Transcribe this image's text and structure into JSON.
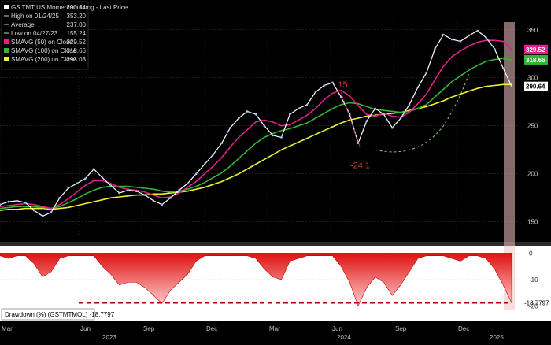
{
  "chart_data": [
    {
      "type": "line",
      "panel": "price",
      "legend": [
        {
          "label": "GS TMT US Momentum Long - Last Price",
          "value": "290.64",
          "color": "#ffffff"
        },
        {
          "label": "High on 01/24/25",
          "value": "353.20",
          "color": "#d0d0d0"
        },
        {
          "label": "Average",
          "value": "237.00",
          "color": "#d0d0d0"
        },
        {
          "label": "Low on 04/27/23",
          "value": "155.24",
          "color": "#d0d0d0"
        },
        {
          "label": "SMAVG (50)  on Close",
          "value": "329.52",
          "color": "#e0208c"
        },
        {
          "label": "SMAVG (100)  on Close",
          "value": "318.66",
          "color": "#36b336"
        },
        {
          "label": "SMAVG (200)  on Close",
          "value": "293.08",
          "color": "#f0f032"
        }
      ],
      "y_ticks": [
        "350",
        "300",
        "250",
        "200",
        "150"
      ],
      "ylim": [
        135,
        358
      ],
      "x_labels": [
        "Mar",
        "Jun",
        "Sep",
        "Dec",
        "Mar",
        "Jun",
        "Sep",
        "Dec"
      ],
      "year_labels": [
        "2023",
        "2024",
        "2025"
      ],
      "price_tag": "290.64",
      "sma_tags": [
        "329.52",
        "318.66"
      ],
      "annotations": {
        "peak": "15",
        "drop": "-24.1"
      },
      "series": [
        {
          "name": "GS TMT US Momentum Long - Last Price",
          "color": "#ffffff",
          "values": [
            168,
            171,
            172,
            170,
            162,
            156,
            160,
            175,
            185,
            190,
            195,
            205,
            196,
            188,
            180,
            183,
            182,
            178,
            172,
            168,
            175,
            183,
            190,
            200,
            210,
            220,
            232,
            248,
            258,
            265,
            262,
            250,
            240,
            238,
            262,
            268,
            272,
            285,
            292,
            295,
            280,
            262,
            232,
            255,
            268,
            262,
            248,
            258,
            272,
            290,
            305,
            330,
            345,
            340,
            338,
            344,
            349,
            342,
            330,
            310,
            291
          ]
        },
        {
          "name": "SMAVG (50)  on Close",
          "color": "#e0208c",
          "values": [
            166,
            167,
            168,
            169,
            168,
            166,
            164,
            168,
            174,
            181,
            188,
            193,
            193,
            190,
            186,
            184,
            183,
            181,
            178,
            175,
            176,
            180,
            186,
            192,
            200,
            208,
            217,
            228,
            238,
            246,
            254,
            256,
            254,
            250,
            251,
            256,
            261,
            268,
            277,
            284,
            287,
            281,
            271,
            262,
            260,
            263,
            260,
            259,
            264,
            273,
            283,
            298,
            312,
            322,
            328,
            333,
            337,
            339,
            339,
            338,
            329.5
          ]
        },
        {
          "name": "SMAVG (100)  on Close",
          "color": "#36b336",
          "values": [
            164,
            165,
            166,
            166,
            166,
            165,
            164,
            166,
            170,
            174,
            179,
            183,
            186,
            187,
            187,
            187,
            186,
            185,
            184,
            182,
            181,
            182,
            184,
            187,
            191,
            196,
            201,
            208,
            216,
            224,
            232,
            238,
            242,
            245,
            247,
            250,
            253,
            258,
            263,
            268,
            272,
            274,
            273,
            270,
            267,
            266,
            265,
            264,
            265,
            268,
            272,
            280,
            288,
            296,
            302,
            308,
            313,
            317,
            319,
            320,
            318.7
          ]
        },
        {
          "name": "SMAVG (200)  on Close",
          "color": "#f0f032",
          "values": [
            162,
            163,
            163,
            164,
            164,
            164,
            163,
            164,
            165,
            167,
            169,
            171,
            173,
            175,
            176,
            177,
            178,
            178,
            179,
            179,
            180,
            181,
            182,
            184,
            186,
            189,
            192,
            196,
            200,
            205,
            210,
            215,
            220,
            225,
            229,
            233,
            237,
            241,
            245,
            249,
            253,
            256,
            258,
            260,
            261,
            262,
            263,
            264,
            266,
            268,
            270,
            273,
            276,
            280,
            283,
            286,
            289,
            291,
            292,
            293,
            293.1
          ]
        }
      ]
    },
    {
      "type": "area",
      "panel": "drawdown",
      "legend_label": "Drawdown (%) (GSTMTMOL)  -18.7797",
      "value_tag": "-18.7797",
      "y_ticks": [
        "0",
        "-10",
        "-20"
      ],
      "ylim": [
        -21,
        1
      ],
      "threshold_line": -18.78,
      "values": [
        -1,
        -2,
        -1,
        -1,
        -4,
        -9,
        -7,
        -2,
        -1,
        -1,
        -1,
        -1,
        -5,
        -8,
        -12,
        -11,
        -11,
        -13,
        -16,
        -19,
        -14,
        -11,
        -8,
        -3,
        -1,
        -1,
        -1,
        -1,
        -1,
        -1,
        -2,
        -6,
        -9,
        -10,
        -3,
        -2,
        -1,
        -1,
        -1,
        -1,
        -5,
        -11,
        -20,
        -13,
        -9,
        -11,
        -16,
        -12,
        -7,
        -2,
        -1,
        -1,
        -1,
        -2,
        -3,
        -1,
        -1,
        -2,
        -6,
        -12,
        -18.8
      ]
    }
  ]
}
